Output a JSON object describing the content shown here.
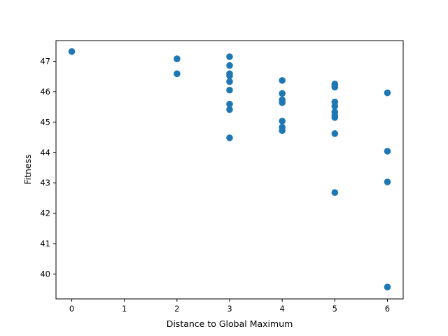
{
  "chart_data": {
    "type": "scatter",
    "title": "",
    "xlabel": "Distance to Global Maximum",
    "ylabel": "Fitness",
    "xlim": [
      -0.3,
      6.3
    ],
    "ylim": [
      39.18,
      47.68
    ],
    "xticks": [
      0,
      1,
      2,
      3,
      4,
      5,
      6
    ],
    "yticks": [
      40,
      41,
      42,
      43,
      44,
      45,
      46,
      47
    ],
    "grid": false,
    "legend": "none",
    "marker_color": "#1f77b4",
    "series": [
      {
        "points": [
          [
            0,
            47.32
          ],
          [
            2,
            47.08
          ],
          [
            2,
            46.59
          ],
          [
            3,
            47.15
          ],
          [
            3,
            46.86
          ],
          [
            3,
            46.59
          ],
          [
            3,
            46.52
          ],
          [
            3,
            46.33
          ],
          [
            3,
            46.05
          ],
          [
            3,
            45.59
          ],
          [
            3,
            45.41
          ],
          [
            3,
            44.48
          ],
          [
            4,
            46.37
          ],
          [
            4,
            45.94
          ],
          [
            4,
            45.73
          ],
          [
            4,
            45.64
          ],
          [
            4,
            45.03
          ],
          [
            4,
            44.83
          ],
          [
            4,
            44.72
          ],
          [
            5,
            46.25
          ],
          [
            5,
            46.21
          ],
          [
            5,
            46.15
          ],
          [
            5,
            45.66
          ],
          [
            5,
            45.52
          ],
          [
            5,
            45.33
          ],
          [
            5,
            45.22
          ],
          [
            5,
            45.15
          ],
          [
            5,
            44.62
          ],
          [
            5,
            42.68
          ],
          [
            6,
            45.96
          ],
          [
            6,
            44.04
          ],
          [
            6,
            43.03
          ],
          [
            6,
            39.57
          ]
        ]
      }
    ]
  }
}
